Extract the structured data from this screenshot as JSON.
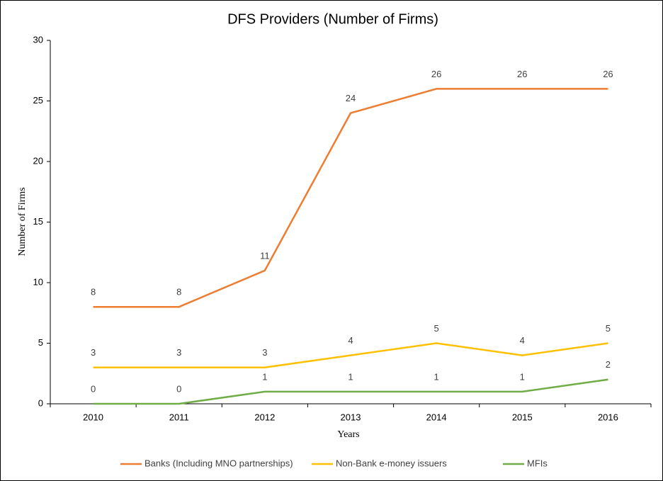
{
  "chart_data": {
    "type": "line",
    "title": "DFS Providers (Number of Firms)",
    "x_label": "Years",
    "y_label": "Number of Firms",
    "categories": [
      "2010",
      "2011",
      "2012",
      "2013",
      "2014",
      "2015",
      "2016"
    ],
    "series": [
      {
        "name": "Banks (Including MNO partnerships)",
        "color": "#ed7d31",
        "values": [
          8,
          8,
          11,
          24,
          26,
          26,
          26
        ]
      },
      {
        "name": "Non-Bank e-money issuers",
        "color": "#ffc000",
        "values": [
          3,
          3,
          3,
          4,
          5,
          4,
          5
        ]
      },
      {
        "name": "MFIs",
        "color": "#70ad47",
        "values": [
          0,
          0,
          1,
          1,
          1,
          1,
          2
        ]
      }
    ],
    "ylim": [
      0,
      30
    ],
    "yticks": [
      0,
      5,
      10,
      15,
      20,
      25,
      30
    ],
    "grid": false,
    "legend": "bottom"
  }
}
